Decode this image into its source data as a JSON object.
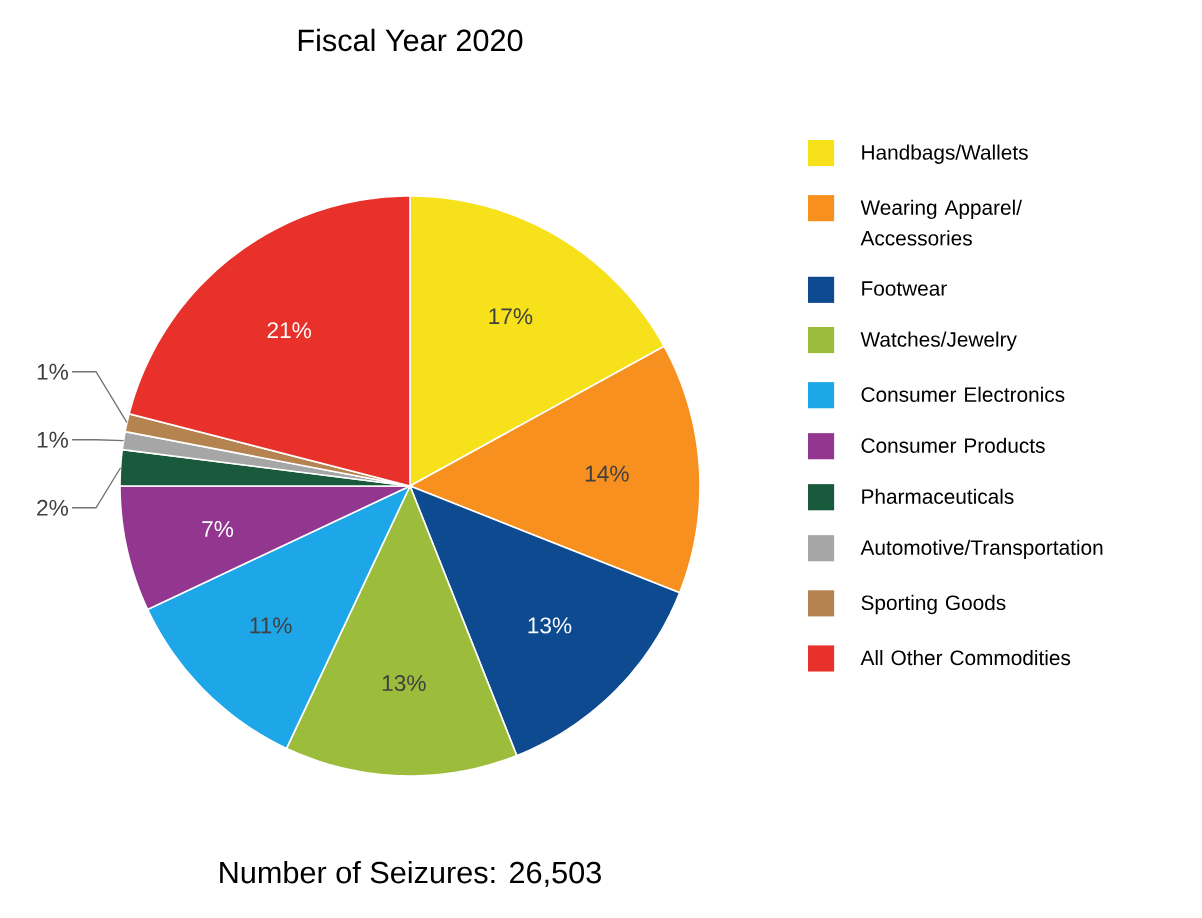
{
  "chart_data": {
    "type": "pie",
    "title": "Fiscal Year 2020",
    "categories": [
      "Handbags/Wallets",
      "Wearing Apparel/ Accessories",
      "Footwear",
      "Watches/Jewelry",
      "Consumer Electronics",
      "Consumer Products",
      "Pharmaceuticals",
      "Automotive/Transportation",
      "Sporting Goods",
      "All Other Commodities"
    ],
    "values": [
      17,
      14,
      13,
      13,
      11,
      7,
      2,
      1,
      1,
      21
    ],
    "value_labels": [
      "17%",
      "14%",
      "13%",
      "13%",
      "11%",
      "7%",
      "2%",
      "1%",
      "1%",
      "21%"
    ],
    "colors": [
      "#f7e11a",
      "#f7901e",
      "#0d4a8f",
      "#9cbd3b",
      "#1ea7e8",
      "#92368f",
      "#1a5a3c",
      "#a6a6a6",
      "#b5834f",
      "#e8312a"
    ],
    "legend": "right",
    "annotations": [
      "Number of Seizures: 26,503"
    ]
  }
}
